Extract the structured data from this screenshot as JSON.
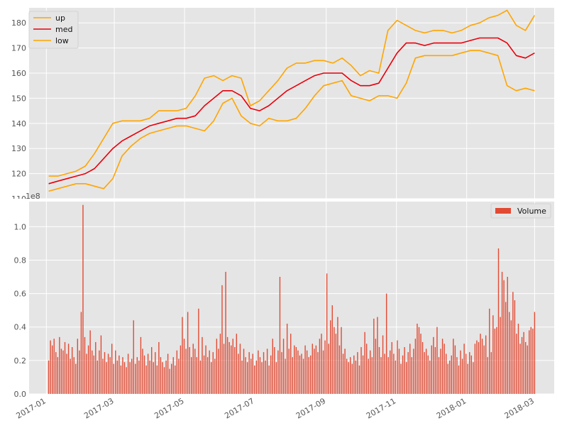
{
  "chart_data": [
    {
      "type": "line",
      "ylim": [
        110,
        186
      ],
      "yticks": [
        110,
        120,
        130,
        140,
        150,
        160,
        170,
        180
      ],
      "grid": true,
      "legend_position": "top-left",
      "series": [
        {
          "name": "up",
          "color": "#FFA500",
          "values": [
            119,
            119,
            120,
            121,
            123,
            128,
            134,
            140,
            141,
            141,
            141,
            142,
            145,
            145,
            145,
            146,
            151,
            158,
            159,
            157,
            159,
            158,
            147,
            149,
            153,
            157,
            162,
            164,
            164,
            165,
            165,
            164,
            166,
            163,
            159,
            161,
            160,
            177,
            181,
            179,
            177,
            176,
            177,
            177,
            176,
            177,
            179,
            180,
            182,
            183,
            185,
            179,
            177,
            183
          ]
        },
        {
          "name": "med",
          "color": "#E8000B",
          "values": [
            116,
            117,
            118,
            119,
            120,
            122,
            126,
            130,
            133,
            135,
            137,
            139,
            140,
            141,
            142,
            142,
            143,
            147,
            150,
            153,
            153,
            151,
            146,
            145,
            147,
            150,
            153,
            155,
            157,
            159,
            160,
            160,
            160,
            157,
            155,
            155,
            156,
            162,
            168,
            172,
            172,
            171,
            172,
            172,
            172,
            172,
            173,
            174,
            174,
            174,
            172,
            167,
            166,
            168
          ]
        },
        {
          "name": "low",
          "color": "#FFA500",
          "values": [
            113,
            114,
            115,
            116,
            116,
            115,
            114,
            118,
            127,
            131,
            134,
            136,
            137,
            138,
            139,
            139,
            138,
            137,
            141,
            148,
            150,
            143,
            140,
            139,
            142,
            141,
            141,
            142,
            146,
            151,
            155,
            156,
            157,
            151,
            150,
            149,
            151,
            151,
            150,
            156,
            166,
            167,
            167,
            167,
            167,
            168,
            169,
            169,
            168,
            167,
            155,
            153,
            154,
            153
          ]
        }
      ]
    },
    {
      "type": "bar",
      "multiplier": "1e8",
      "ylim": [
        0,
        1.15
      ],
      "yticks": [
        "0.0",
        "0.2",
        "0.4",
        "0.6",
        "0.8",
        "1.0"
      ],
      "grid": true,
      "legend_position": "top-right",
      "series": [
        {
          "name": "Volume",
          "color": "#E24A33",
          "values": [
            0.2,
            0.32,
            0.29,
            0.33,
            0.25,
            0.22,
            0.34,
            0.27,
            0.26,
            0.31,
            0.24,
            0.3,
            0.21,
            0.28,
            0.22,
            0.18,
            0.33,
            0.26,
            0.49,
            1.13,
            0.34,
            0.24,
            0.29,
            0.38,
            0.26,
            0.23,
            0.31,
            0.2,
            0.26,
            0.35,
            0.21,
            0.25,
            0.19,
            0.24,
            0.22,
            0.3,
            0.18,
            0.26,
            0.2,
            0.23,
            0.17,
            0.22,
            0.19,
            0.16,
            0.24,
            0.19,
            0.21,
            0.44,
            0.18,
            0.22,
            0.2,
            0.34,
            0.27,
            0.23,
            0.17,
            0.24,
            0.2,
            0.28,
            0.19,
            0.25,
            0.17,
            0.31,
            0.22,
            0.19,
            0.16,
            0.2,
            0.24,
            0.15,
            0.18,
            0.22,
            0.17,
            0.26,
            0.21,
            0.29,
            0.46,
            0.33,
            0.27,
            0.49,
            0.28,
            0.22,
            0.3,
            0.27,
            0.22,
            0.51,
            0.2,
            0.34,
            0.23,
            0.29,
            0.22,
            0.26,
            0.19,
            0.25,
            0.21,
            0.33,
            0.27,
            0.36,
            0.65,
            0.3,
            0.73,
            0.34,
            0.31,
            0.29,
            0.33,
            0.28,
            0.36,
            0.24,
            0.3,
            0.2,
            0.27,
            0.22,
            0.19,
            0.25,
            0.21,
            0.24,
            0.17,
            0.2,
            0.26,
            0.22,
            0.19,
            0.25,
            0.2,
            0.27,
            0.17,
            0.23,
            0.33,
            0.28,
            0.19,
            0.26,
            0.7,
            0.25,
            0.33,
            0.21,
            0.42,
            0.27,
            0.36,
            0.22,
            0.29,
            0.28,
            0.26,
            0.23,
            0.24,
            0.21,
            0.29,
            0.26,
            0.22,
            0.23,
            0.3,
            0.27,
            0.29,
            0.25,
            0.33,
            0.36,
            0.26,
            0.32,
            0.72,
            0.3,
            0.44,
            0.53,
            0.4,
            0.36,
            0.46,
            0.29,
            0.4,
            0.24,
            0.27,
            0.21,
            0.19,
            0.22,
            0.18,
            0.23,
            0.2,
            0.25,
            0.17,
            0.28,
            0.23,
            0.37,
            0.3,
            0.21,
            0.26,
            0.22,
            0.45,
            0.33,
            0.46,
            0.28,
            0.22,
            0.35,
            0.24,
            0.6,
            0.22,
            0.26,
            0.31,
            0.24,
            0.2,
            0.32,
            0.27,
            0.18,
            0.23,
            0.28,
            0.19,
            0.25,
            0.3,
            0.22,
            0.27,
            0.33,
            0.42,
            0.4,
            0.36,
            0.31,
            0.25,
            0.27,
            0.23,
            0.2,
            0.29,
            0.34,
            0.28,
            0.4,
            0.22,
            0.27,
            0.33,
            0.3,
            0.24,
            0.18,
            0.2,
            0.23,
            0.33,
            0.29,
            0.22,
            0.17,
            0.26,
            0.21,
            0.3,
            0.24,
            0.18,
            0.25,
            0.23,
            0.19,
            0.3,
            0.32,
            0.31,
            0.36,
            0.33,
            0.29,
            0.35,
            0.22,
            0.51,
            0.25,
            0.47,
            0.39,
            0.4,
            0.87,
            0.46,
            0.73,
            0.68,
            0.55,
            0.7,
            0.49,
            0.44,
            0.61,
            0.56,
            0.36,
            0.42,
            0.3,
            0.34,
            0.37,
            0.31,
            0.29,
            0.38,
            0.4,
            0.39,
            0.49
          ]
        }
      ]
    }
  ],
  "x_axis": {
    "tick_labels": [
      "2017-01",
      "2017-03",
      "2017-05",
      "2017-07",
      "2017-09",
      "2017-11",
      "2018-01",
      "2018-03"
    ],
    "tick_dates": [
      "2017-01-01",
      "2017-03-01",
      "2017-05-01",
      "2017-07-01",
      "2017-09-01",
      "2017-11-01",
      "2018-01-01",
      "2018-03-01"
    ],
    "line_date_range": [
      "2017-01-03",
      "2018-03-01"
    ],
    "bar_date_range": [
      "2017-01-03",
      "2018-03-01"
    ]
  },
  "colors": {
    "axes_bg": "#E5E5E5",
    "grid": "#FFFFFF",
    "tick_text": "#555555"
  }
}
